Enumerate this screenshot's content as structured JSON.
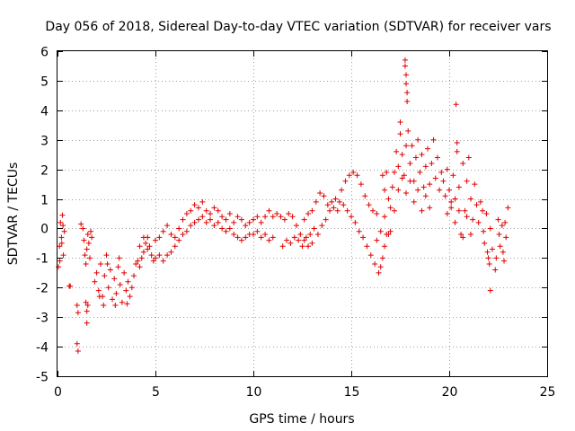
{
  "chart_data": {
    "type": "scatter",
    "title": "Day 056 of 2018, Sidereal Day-to-day VTEC variation (SDTVAR) for receiver vars",
    "xlabel": "GPS time / hours",
    "ylabel": "SDTVAR / TECUs",
    "xlim": [
      0,
      25
    ],
    "ylim": [
      -5,
      6
    ],
    "xticks": [
      0,
      5,
      10,
      15,
      20,
      25
    ],
    "yticks": [
      -5,
      -4,
      -3,
      -2,
      -1,
      0,
      1,
      2,
      3,
      4,
      5,
      6
    ],
    "grid": true,
    "marker": "+",
    "color": "#e00000",
    "series": [
      {
        "name": "receiver vars",
        "points": [
          [
            0.05,
            -1.3
          ],
          [
            0.1,
            -0.6
          ],
          [
            0.15,
            0.2
          ],
          [
            0.2,
            -0.3
          ],
          [
            0.25,
            0.45
          ],
          [
            0.3,
            -0.9
          ],
          [
            0.35,
            -0.1
          ],
          [
            0.12,
            -1.1
          ],
          [
            0.22,
            -0.5
          ],
          [
            0.28,
            0.1
          ],
          [
            0.6,
            -1.95
          ],
          [
            0.65,
            -1.95
          ],
          [
            1.0,
            -2.6
          ],
          [
            1.05,
            -2.85
          ],
          [
            1.0,
            -3.9
          ],
          [
            1.05,
            -4.15
          ],
          [
            1.2,
            0.15
          ],
          [
            1.3,
            0.0
          ],
          [
            1.35,
            -0.4
          ],
          [
            1.4,
            -0.9
          ],
          [
            1.45,
            -1.2
          ],
          [
            1.5,
            -0.7
          ],
          [
            1.55,
            -0.2
          ],
          [
            1.6,
            -0.5
          ],
          [
            1.65,
            -1.0
          ],
          [
            1.7,
            -0.1
          ],
          [
            1.75,
            -0.3
          ],
          [
            1.45,
            -2.5
          ],
          [
            1.5,
            -2.8
          ],
          [
            1.5,
            -3.2
          ],
          [
            1.55,
            -2.6
          ],
          [
            1.9,
            -1.8
          ],
          [
            2.0,
            -1.5
          ],
          [
            2.1,
            -2.1
          ],
          [
            2.2,
            -1.2
          ],
          [
            2.3,
            -2.3
          ],
          [
            2.4,
            -1.6
          ],
          [
            2.5,
            -0.9
          ],
          [
            2.6,
            -2.0
          ],
          [
            2.7,
            -1.4
          ],
          [
            2.8,
            -2.4
          ],
          [
            2.9,
            -1.7
          ],
          [
            3.0,
            -2.2
          ],
          [
            3.1,
            -1.3
          ],
          [
            3.2,
            -1.9
          ],
          [
            3.3,
            -2.5
          ],
          [
            3.4,
            -1.5
          ],
          [
            3.5,
            -2.1
          ],
          [
            3.6,
            -1.8
          ],
          [
            3.7,
            -2.3
          ],
          [
            3.8,
            -2.0
          ],
          [
            3.9,
            -1.6
          ],
          [
            4.0,
            -1.2
          ],
          [
            2.35,
            -2.6
          ],
          [
            2.95,
            -2.6
          ],
          [
            3.55,
            -2.55
          ],
          [
            3.15,
            -1.0
          ],
          [
            2.55,
            -1.2
          ],
          [
            2.15,
            -2.3
          ],
          [
            4.1,
            -1.1
          ],
          [
            4.2,
            -1.3
          ],
          [
            4.3,
            -1.0
          ],
          [
            4.4,
            -0.8
          ],
          [
            4.5,
            -0.5
          ],
          [
            4.6,
            -0.3
          ],
          [
            4.7,
            -0.6
          ],
          [
            4.8,
            -0.9
          ],
          [
            4.9,
            -1.1
          ],
          [
            4.4,
            -0.3
          ],
          [
            4.6,
            -0.7
          ],
          [
            4.2,
            -0.6
          ],
          [
            5.0,
            -1.0
          ],
          [
            5.2,
            -0.9
          ],
          [
            5.4,
            -1.1
          ],
          [
            5.6,
            -0.9
          ],
          [
            5.8,
            -0.8
          ],
          [
            6.0,
            -0.6
          ],
          [
            6.2,
            -0.4
          ],
          [
            6.4,
            -0.2
          ],
          [
            6.6,
            -0.1
          ],
          [
            6.8,
            0.1
          ],
          [
            7.0,
            0.2
          ],
          [
            5.0,
            -0.4
          ],
          [
            5.2,
            -0.3
          ],
          [
            5.4,
            -0.1
          ],
          [
            5.6,
            0.1
          ],
          [
            5.8,
            -0.2
          ],
          [
            6.0,
            -0.3
          ],
          [
            6.2,
            0.0
          ],
          [
            6.4,
            0.3
          ],
          [
            6.6,
            0.5
          ],
          [
            6.8,
            0.6
          ],
          [
            7.0,
            0.8
          ],
          [
            7.2,
            0.7
          ],
          [
            7.4,
            0.9
          ],
          [
            7.6,
            0.6
          ],
          [
            7.8,
            0.5
          ],
          [
            8.0,
            0.7
          ],
          [
            8.2,
            0.6
          ],
          [
            8.4,
            0.4
          ],
          [
            8.6,
            0.3
          ],
          [
            8.8,
            0.5
          ],
          [
            9.0,
            0.2
          ],
          [
            7.2,
            0.3
          ],
          [
            7.4,
            0.4
          ],
          [
            7.6,
            0.2
          ],
          [
            7.8,
            0.3
          ],
          [
            8.0,
            0.1
          ],
          [
            8.2,
            0.2
          ],
          [
            8.4,
            0.0
          ],
          [
            8.6,
            -0.1
          ],
          [
            8.8,
            0.0
          ],
          [
            9.0,
            -0.2
          ],
          [
            9.2,
            0.4
          ],
          [
            9.4,
            0.3
          ],
          [
            9.6,
            0.1
          ],
          [
            9.8,
            0.2
          ],
          [
            10.0,
            0.3
          ],
          [
            10.2,
            0.4
          ],
          [
            10.4,
            0.2
          ],
          [
            10.6,
            0.4
          ],
          [
            10.8,
            0.6
          ],
          [
            11.0,
            0.4
          ],
          [
            9.2,
            -0.3
          ],
          [
            9.4,
            -0.4
          ],
          [
            9.6,
            -0.3
          ],
          [
            9.8,
            -0.2
          ],
          [
            10.0,
            -0.2
          ],
          [
            10.2,
            -0.1
          ],
          [
            10.4,
            -0.3
          ],
          [
            10.6,
            -0.2
          ],
          [
            10.8,
            -0.4
          ],
          [
            11.0,
            -0.3
          ],
          [
            11.2,
            0.5
          ],
          [
            11.4,
            0.4
          ],
          [
            11.6,
            0.3
          ],
          [
            11.8,
            0.5
          ],
          [
            12.0,
            0.4
          ],
          [
            12.2,
            0.1
          ],
          [
            12.4,
            -0.2
          ],
          [
            12.6,
            -0.4
          ],
          [
            12.8,
            -0.6
          ],
          [
            13.0,
            -0.5
          ],
          [
            11.5,
            -0.6
          ],
          [
            11.7,
            -0.4
          ],
          [
            11.9,
            -0.5
          ],
          [
            12.1,
            -0.3
          ],
          [
            12.3,
            -0.4
          ],
          [
            12.5,
            -0.6
          ],
          [
            12.7,
            -0.3
          ],
          [
            12.9,
            -0.2
          ],
          [
            13.1,
            0.0
          ],
          [
            12.6,
            0.3
          ],
          [
            12.8,
            0.5
          ],
          [
            13.0,
            0.6
          ],
          [
            13.2,
            0.9
          ],
          [
            13.4,
            1.2
          ],
          [
            13.6,
            1.1
          ],
          [
            13.8,
            0.8
          ],
          [
            14.0,
            0.9
          ],
          [
            14.2,
            1.0
          ],
          [
            14.4,
            0.9
          ],
          [
            13.3,
            -0.2
          ],
          [
            13.5,
            0.1
          ],
          [
            13.7,
            0.3
          ],
          [
            13.9,
            0.6
          ],
          [
            14.1,
            0.7
          ],
          [
            14.3,
            0.6
          ],
          [
            14.5,
            1.3
          ],
          [
            14.7,
            1.6
          ],
          [
            14.9,
            1.8
          ],
          [
            15.1,
            1.9
          ],
          [
            15.3,
            1.8
          ],
          [
            15.5,
            1.5
          ],
          [
            15.7,
            1.1
          ],
          [
            15.9,
            0.8
          ],
          [
            16.1,
            0.6
          ],
          [
            16.3,
            0.5
          ],
          [
            14.6,
            0.8
          ],
          [
            14.8,
            0.6
          ],
          [
            15.0,
            0.4
          ],
          [
            15.2,
            0.2
          ],
          [
            15.4,
            -0.1
          ],
          [
            15.6,
            -0.3
          ],
          [
            15.8,
            -0.6
          ],
          [
            16.0,
            -0.9
          ],
          [
            16.2,
            -1.2
          ],
          [
            16.4,
            -1.5
          ],
          [
            16.5,
            -1.3
          ],
          [
            16.6,
            -1.0
          ],
          [
            16.7,
            -0.6
          ],
          [
            16.8,
            -0.2
          ],
          [
            16.9,
            -0.2
          ],
          [
            17.0,
            -0.1
          ],
          [
            16.3,
            -0.4
          ],
          [
            16.5,
            -0.1
          ],
          [
            16.7,
            0.4
          ],
          [
            16.9,
            1.0
          ],
          [
            16.6,
            1.8
          ],
          [
            16.7,
            1.3
          ],
          [
            16.8,
            1.9
          ],
          [
            17.0,
            0.7
          ],
          [
            17.1,
            1.4
          ],
          [
            17.2,
            1.9
          ],
          [
            17.3,
            2.6
          ],
          [
            17.4,
            2.1
          ],
          [
            17.5,
            3.2
          ],
          [
            17.6,
            2.5
          ],
          [
            17.7,
            1.8
          ],
          [
            17.8,
            2.8
          ],
          [
            17.9,
            3.3
          ],
          [
            18.0,
            2.2
          ],
          [
            18.1,
            2.8
          ],
          [
            18.2,
            1.6
          ],
          [
            18.3,
            2.4
          ],
          [
            18.4,
            3.0
          ],
          [
            18.5,
            1.9
          ],
          [
            18.6,
            2.5
          ],
          [
            18.7,
            1.4
          ],
          [
            18.8,
            2.1
          ],
          [
            18.9,
            2.7
          ],
          [
            19.0,
            1.5
          ],
          [
            19.1,
            2.2
          ],
          [
            19.2,
            3.0
          ],
          [
            19.3,
            1.7
          ],
          [
            19.4,
            2.4
          ],
          [
            19.5,
            1.3
          ],
          [
            19.6,
            1.9
          ],
          [
            17.2,
            0.6
          ],
          [
            17.4,
            1.3
          ],
          [
            17.6,
            1.7
          ],
          [
            17.8,
            1.2
          ],
          [
            18.0,
            1.6
          ],
          [
            18.2,
            0.9
          ],
          [
            18.4,
            1.3
          ],
          [
            18.6,
            0.6
          ],
          [
            18.8,
            1.1
          ],
          [
            19.0,
            0.7
          ],
          [
            17.75,
            5.7
          ],
          [
            17.75,
            5.5
          ],
          [
            17.8,
            5.2
          ],
          [
            17.8,
            4.9
          ],
          [
            17.85,
            4.6
          ],
          [
            17.85,
            4.3
          ],
          [
            17.5,
            3.6
          ],
          [
            19.7,
            1.6
          ],
          [
            19.8,
            1.1
          ],
          [
            19.9,
            2.0
          ],
          [
            20.0,
            1.3
          ],
          [
            20.1,
            0.7
          ],
          [
            20.2,
            1.8
          ],
          [
            20.3,
            1.0
          ],
          [
            20.4,
            2.6
          ],
          [
            20.5,
            1.4
          ],
          [
            20.6,
            -0.2
          ],
          [
            20.7,
            2.2
          ],
          [
            20.8,
            0.6
          ],
          [
            20.9,
            1.6
          ],
          [
            21.0,
            2.4
          ],
          [
            21.1,
            1.0
          ],
          [
            21.2,
            0.3
          ],
          [
            21.3,
            1.5
          ],
          [
            21.4,
            0.8
          ],
          [
            21.5,
            0.2
          ],
          [
            21.6,
            0.9
          ],
          [
            19.9,
            0.5
          ],
          [
            20.1,
            0.9
          ],
          [
            20.3,
            0.2
          ],
          [
            20.5,
            0.6
          ],
          [
            20.7,
            -0.3
          ],
          [
            20.9,
            0.4
          ],
          [
            21.1,
            -0.2
          ],
          [
            20.35,
            4.2
          ],
          [
            20.4,
            2.9
          ],
          [
            21.7,
            0.6
          ],
          [
            21.8,
            -0.5
          ],
          [
            21.9,
            0.5
          ],
          [
            22.0,
            -1.0
          ],
          [
            22.1,
            0.0
          ],
          [
            22.2,
            -0.7
          ],
          [
            21.75,
            -0.1
          ],
          [
            21.95,
            -0.8
          ],
          [
            22.05,
            -1.2
          ],
          [
            22.1,
            -2.1
          ],
          [
            22.35,
            -1.4
          ],
          [
            22.4,
            -1.0
          ],
          [
            22.5,
            0.3
          ],
          [
            22.6,
            -0.6
          ],
          [
            22.7,
            0.1
          ],
          [
            22.8,
            -1.1
          ],
          [
            22.9,
            -0.3
          ],
          [
            23.0,
            0.7
          ],
          [
            22.55,
            -0.2
          ],
          [
            22.75,
            -0.8
          ],
          [
            22.85,
            0.2
          ]
        ]
      }
    ]
  }
}
